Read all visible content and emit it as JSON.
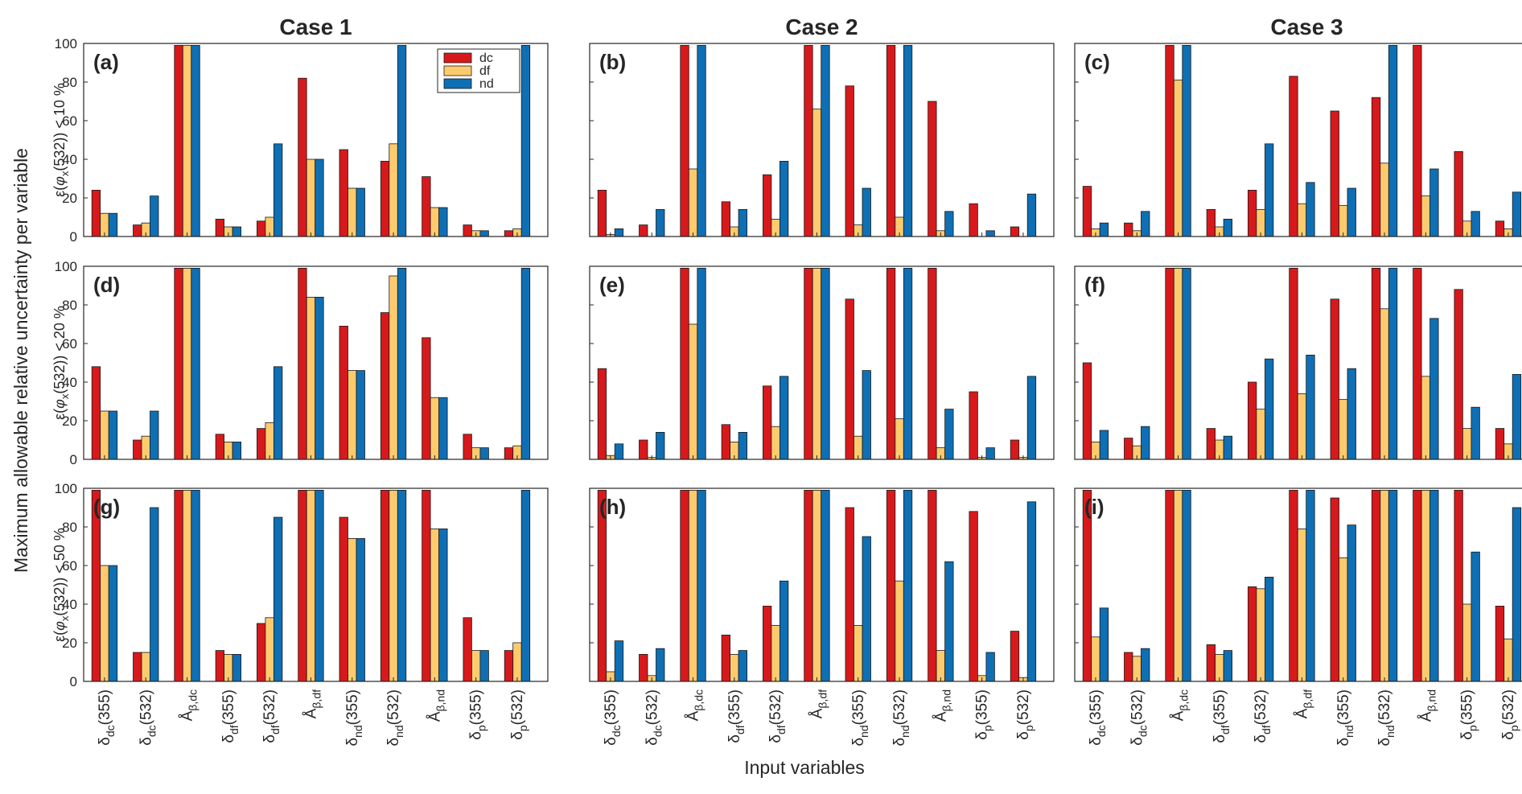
{
  "figure": {
    "ylabel": "Maximum allowable relative uncertainty per variable",
    "xlabel": "Input variables"
  },
  "legend": [
    {
      "name": "dc",
      "color": "#D7191C"
    },
    {
      "name": "df",
      "color": "#FDCB6E"
    },
    {
      "name": "nd",
      "color": "#0E6FB4"
    }
  ],
  "chart_data": {
    "type": "bar",
    "ylim": [
      0,
      100
    ],
    "yticks": [
      0,
      20,
      40,
      60,
      80,
      100
    ],
    "grid": false,
    "legend_placement": "top-right of panel (a)",
    "columns": [
      "Case 1",
      "Case 2",
      "Case 3"
    ],
    "rows": [
      "ε(φx(532)) < 10 %",
      "ε(φx(532)) < 20 %",
      "ε(φx(532)) < 50 %"
    ],
    "categories": [
      {
        "base": "δ",
        "sub": "dc",
        "suffix": "(355)"
      },
      {
        "base": "δ",
        "sub": "dc",
        "suffix": "(532)"
      },
      {
        "base": "Å",
        "sub": "β,dc",
        "suffix": ""
      },
      {
        "base": "δ",
        "sub": "df",
        "suffix": "(355)"
      },
      {
        "base": "δ",
        "sub": "df",
        "suffix": "(532)"
      },
      {
        "base": "Å",
        "sub": "β,df",
        "suffix": ""
      },
      {
        "base": "δ",
        "sub": "nd",
        "suffix": "(355)"
      },
      {
        "base": "δ",
        "sub": "nd",
        "suffix": "(532)"
      },
      {
        "base": "Å",
        "sub": "β,nd",
        "suffix": ""
      },
      {
        "base": "δ",
        "sub": "p",
        "suffix": "(355)"
      },
      {
        "base": "δ",
        "sub": "p",
        "suffix": "(532)"
      }
    ],
    "series_names": [
      "dc",
      "df",
      "nd"
    ],
    "panels": [
      {
        "label": "(a)",
        "row": 0,
        "col": 0,
        "values": [
          [
            24,
            12,
            12
          ],
          [
            6,
            7,
            21
          ],
          [
            99,
            99,
            99
          ],
          [
            9,
            5,
            5
          ],
          [
            8,
            10,
            48
          ],
          [
            82,
            40,
            40
          ],
          [
            45,
            25,
            25
          ],
          [
            39,
            48,
            99
          ],
          [
            31,
            15,
            15
          ],
          [
            6,
            3,
            3
          ],
          [
            3,
            4,
            99
          ]
        ]
      },
      {
        "label": "(b)",
        "row": 0,
        "col": 1,
        "values": [
          [
            24,
            1,
            4
          ],
          [
            6,
            0,
            14
          ],
          [
            99,
            35,
            99
          ],
          [
            18,
            5,
            14
          ],
          [
            32,
            9,
            39
          ],
          [
            99,
            66,
            99
          ],
          [
            78,
            6,
            25
          ],
          [
            99,
            10,
            99
          ],
          [
            70,
            3,
            13
          ],
          [
            17,
            0,
            3
          ],
          [
            5,
            0,
            22
          ]
        ]
      },
      {
        "label": "(c)",
        "row": 0,
        "col": 2,
        "values": [
          [
            26,
            4,
            7
          ],
          [
            7,
            3,
            13
          ],
          [
            99,
            81,
            99
          ],
          [
            14,
            5,
            9
          ],
          [
            24,
            14,
            48
          ],
          [
            83,
            17,
            28
          ],
          [
            65,
            16,
            25
          ],
          [
            72,
            38,
            99
          ],
          [
            99,
            21,
            35
          ],
          [
            44,
            8,
            13
          ],
          [
            8,
            4,
            23
          ]
        ]
      },
      {
        "label": "(d)",
        "row": 1,
        "col": 0,
        "values": [
          [
            48,
            25,
            25
          ],
          [
            10,
            12,
            25
          ],
          [
            99,
            99,
            99
          ],
          [
            13,
            9,
            9
          ],
          [
            16,
            19,
            48
          ],
          [
            99,
            84,
            84
          ],
          [
            69,
            46,
            46
          ],
          [
            76,
            95,
            99
          ],
          [
            63,
            32,
            32
          ],
          [
            13,
            6,
            6
          ],
          [
            6,
            7,
            99
          ]
        ]
      },
      {
        "label": "(e)",
        "row": 1,
        "col": 1,
        "values": [
          [
            47,
            2,
            8
          ],
          [
            10,
            1,
            14
          ],
          [
            99,
            70,
            99
          ],
          [
            18,
            9,
            14
          ],
          [
            38,
            17,
            43
          ],
          [
            99,
            99,
            99
          ],
          [
            83,
            12,
            46
          ],
          [
            99,
            21,
            99
          ],
          [
            99,
            6,
            26
          ],
          [
            35,
            1,
            6
          ],
          [
            10,
            1,
            43
          ]
        ]
      },
      {
        "label": "(f)",
        "row": 1,
        "col": 2,
        "values": [
          [
            50,
            9,
            15
          ],
          [
            11,
            7,
            17
          ],
          [
            99,
            99,
            99
          ],
          [
            16,
            10,
            12
          ],
          [
            40,
            26,
            52
          ],
          [
            99,
            34,
            54
          ],
          [
            83,
            31,
            47
          ],
          [
            99,
            78,
            99
          ],
          [
            99,
            43,
            73
          ],
          [
            88,
            16,
            27
          ],
          [
            16,
            8,
            44
          ]
        ]
      },
      {
        "label": "(g)",
        "row": 2,
        "col": 0,
        "values": [
          [
            99,
            60,
            60
          ],
          [
            15,
            15,
            90
          ],
          [
            99,
            99,
            99
          ],
          [
            16,
            14,
            14
          ],
          [
            30,
            33,
            85
          ],
          [
            99,
            99,
            99
          ],
          [
            85,
            74,
            74
          ],
          [
            99,
            99,
            99
          ],
          [
            99,
            79,
            79
          ],
          [
            33,
            16,
            16
          ],
          [
            16,
            20,
            99
          ]
        ]
      },
      {
        "label": "(h)",
        "row": 2,
        "col": 1,
        "values": [
          [
            99,
            5,
            21
          ],
          [
            14,
            3,
            17
          ],
          [
            99,
            99,
            99
          ],
          [
            24,
            14,
            16
          ],
          [
            39,
            29,
            52
          ],
          [
            99,
            99,
            99
          ],
          [
            90,
            29,
            75
          ],
          [
            99,
            52,
            99
          ],
          [
            99,
            16,
            62
          ],
          [
            88,
            3,
            15
          ],
          [
            26,
            2,
            93
          ]
        ]
      },
      {
        "label": "(i)",
        "row": 2,
        "col": 2,
        "values": [
          [
            99,
            23,
            38
          ],
          [
            15,
            13,
            17
          ],
          [
            99,
            99,
            99
          ],
          [
            19,
            14,
            16
          ],
          [
            49,
            48,
            54
          ],
          [
            99,
            79,
            99
          ],
          [
            95,
            64,
            81
          ],
          [
            99,
            99,
            99
          ],
          [
            99,
            99,
            99
          ],
          [
            99,
            40,
            67
          ],
          [
            39,
            22,
            90
          ]
        ]
      }
    ]
  }
}
